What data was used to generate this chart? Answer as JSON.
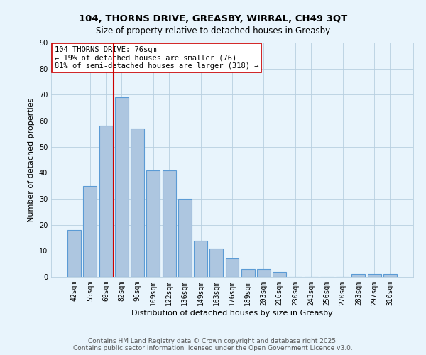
{
  "title1": "104, THORNS DRIVE, GREASBY, WIRRAL, CH49 3QT",
  "title2": "Size of property relative to detached houses in Greasby",
  "xlabel": "Distribution of detached houses by size in Greasby",
  "ylabel": "Number of detached properties",
  "categories": [
    "42sqm",
    "55sqm",
    "69sqm",
    "82sqm",
    "96sqm",
    "109sqm",
    "122sqm",
    "136sqm",
    "149sqm",
    "163sqm",
    "176sqm",
    "189sqm",
    "203sqm",
    "216sqm",
    "230sqm",
    "243sqm",
    "256sqm",
    "270sqm",
    "283sqm",
    "297sqm",
    "310sqm"
  ],
  "values": [
    18,
    35,
    58,
    69,
    57,
    41,
    41,
    30,
    14,
    11,
    7,
    3,
    3,
    2,
    0,
    0,
    0,
    0,
    1,
    1,
    1
  ],
  "bar_color": "#adc6e0",
  "bar_edge_color": "#5b9bd5",
  "grid_color": "#b8cfe0",
  "bg_color": "#e8f4fc",
  "vertical_line_x": 2.5,
  "vertical_line_color": "#cc0000",
  "annotation_text": "104 THORNS DRIVE: 76sqm\n← 19% of detached houses are smaller (76)\n81% of semi-detached houses are larger (318) →",
  "annotation_box_color": "#ffffff",
  "annotation_box_edge": "#cc0000",
  "ylim": [
    0,
    90
  ],
  "yticks": [
    0,
    10,
    20,
    30,
    40,
    50,
    60,
    70,
    80,
    90
  ],
  "footer": "Contains HM Land Registry data © Crown copyright and database right 2025.\nContains public sector information licensed under the Open Government Licence v3.0.",
  "title_fontsize": 9.5,
  "subtitle_fontsize": 8.5,
  "axis_label_fontsize": 8,
  "tick_fontsize": 7,
  "annotation_fontsize": 7.5,
  "footer_fontsize": 6.5
}
